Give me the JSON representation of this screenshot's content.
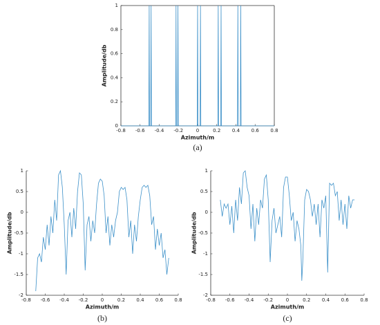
{
  "chart_data": [
    {
      "type": "line",
      "caption": "(a)",
      "xlabel": "Azimuth/m",
      "ylabel": "Amplitude/db",
      "color": "#3a8fc8",
      "box": true,
      "xlim": [
        -0.8,
        0.8
      ],
      "xticks": [
        -0.8,
        -0.6,
        -0.4,
        -0.2,
        0,
        0.2,
        0.4,
        0.6,
        0.8
      ],
      "ylim": [
        0,
        1
      ],
      "yticks": [
        0,
        0.2,
        0.4,
        0.6,
        0.8,
        1
      ],
      "x": [
        -0.8,
        -0.509,
        -0.505,
        -0.501,
        -0.489,
        -0.485,
        -0.481,
        -0.229,
        -0.225,
        -0.221,
        -0.209,
        -0.205,
        -0.201,
        -0.004,
        0,
        0.004,
        0.026,
        0.03,
        0.034,
        0.211,
        0.215,
        0.219,
        0.241,
        0.245,
        0.249,
        0.416,
        0.42,
        0.424,
        0.446,
        0.45,
        0.454,
        0.8
      ],
      "values": [
        0,
        0,
        1,
        0,
        0,
        1,
        0,
        0,
        1,
        0,
        0,
        1,
        0,
        0,
        1,
        0,
        0,
        1,
        0,
        0,
        1,
        0,
        0,
        1,
        0,
        0,
        1,
        0,
        0,
        1,
        0,
        0
      ]
    },
    {
      "type": "line",
      "caption": "(b)",
      "xlabel": "Azimuth/m",
      "ylabel": "Amplitude/db",
      "color": "#3a8fc8",
      "box": false,
      "xlim": [
        -0.8,
        0.8
      ],
      "xticks": [
        -0.8,
        -0.6,
        -0.4,
        -0.2,
        0,
        0.2,
        0.4,
        0.6,
        0.8
      ],
      "ylim": [
        -2,
        1
      ],
      "yticks": [
        -2,
        -1.5,
        -1,
        -0.5,
        0,
        0.5,
        1
      ],
      "x": [
        -0.7,
        -0.68,
        -0.66,
        -0.64,
        -0.62,
        -0.6,
        -0.58,
        -0.56,
        -0.54,
        -0.52,
        -0.5,
        -0.48,
        -0.46,
        -0.44,
        -0.42,
        -0.4,
        -0.38,
        -0.36,
        -0.34,
        -0.32,
        -0.3,
        -0.28,
        -0.26,
        -0.24,
        -0.22,
        -0.2,
        -0.18,
        -0.16,
        -0.14,
        -0.12,
        -0.1,
        -0.08,
        -0.06,
        -0.04,
        -0.02,
        0,
        0.02,
        0.04,
        0.06,
        0.08,
        0.1,
        0.12,
        0.14,
        0.16,
        0.18,
        0.2,
        0.22,
        0.24,
        0.26,
        0.28,
        0.3,
        0.32,
        0.34,
        0.36,
        0.38,
        0.4,
        0.42,
        0.44,
        0.46,
        0.48,
        0.5,
        0.52,
        0.54,
        0.56,
        0.58,
        0.6,
        0.62,
        0.64,
        0.66,
        0.68,
        0.7
      ],
      "values": [
        -1.9,
        -1.1,
        -1.0,
        -1.2,
        -0.6,
        -0.9,
        -0.3,
        -0.8,
        -0.1,
        -0.5,
        0.3,
        -0.2,
        0.9,
        1.0,
        0.6,
        -0.3,
        -1.5,
        -0.2,
        0.0,
        -0.6,
        0.1,
        -0.4,
        0.5,
        0.95,
        0.9,
        0.2,
        -1.4,
        -0.3,
        -0.1,
        -0.7,
        -0.2,
        -0.5,
        0.2,
        0.7,
        0.8,
        0.75,
        0.4,
        -0.5,
        -0.1,
        -0.8,
        -0.3,
        -0.6,
        -0.2,
        0.0,
        0.5,
        0.6,
        0.55,
        0.6,
        0.3,
        -0.6,
        -0.2,
        -1.0,
        -0.3,
        -0.7,
        -0.1,
        0.3,
        0.6,
        0.65,
        0.6,
        0.65,
        0.4,
        -0.3,
        -0.1,
        -0.9,
        -0.4,
        -0.8,
        -0.5,
        -1.1,
        -0.9,
        -1.5,
        -1.1
      ]
    },
    {
      "type": "line",
      "caption": "(c)",
      "xlabel": "Azimuth/m",
      "ylabel": "Amplitude/db",
      "color": "#3a8fc8",
      "box": false,
      "xlim": [
        -0.8,
        0.8
      ],
      "xticks": [
        -0.8,
        -0.6,
        -0.4,
        -0.2,
        0,
        0.2,
        0.4,
        0.6,
        0.8
      ],
      "ylim": [
        -2,
        1
      ],
      "yticks": [
        -2,
        -1.5,
        -1,
        -0.5,
        0,
        0.5,
        1
      ],
      "x": [
        -0.7,
        -0.68,
        -0.66,
        -0.64,
        -0.62,
        -0.6,
        -0.58,
        -0.56,
        -0.54,
        -0.52,
        -0.5,
        -0.48,
        -0.46,
        -0.44,
        -0.42,
        -0.4,
        -0.38,
        -0.36,
        -0.34,
        -0.32,
        -0.3,
        -0.28,
        -0.26,
        -0.24,
        -0.22,
        -0.2,
        -0.18,
        -0.16,
        -0.14,
        -0.12,
        -0.1,
        -0.08,
        -0.06,
        -0.04,
        -0.02,
        0,
        0.02,
        0.04,
        0.06,
        0.08,
        0.1,
        0.12,
        0.14,
        0.15,
        0.16,
        0.18,
        0.2,
        0.22,
        0.24,
        0.26,
        0.28,
        0.3,
        0.32,
        0.34,
        0.36,
        0.38,
        0.4,
        0.42,
        0.44,
        0.46,
        0.48,
        0.5,
        0.52,
        0.54,
        0.56,
        0.58,
        0.6,
        0.62,
        0.64,
        0.66,
        0.68,
        0.7
      ],
      "values": [
        0.3,
        -0.1,
        0.2,
        0.1,
        0.2,
        -0.3,
        0.15,
        -0.5,
        0.3,
        -0.2,
        0.6,
        0.2,
        0.95,
        1.0,
        0.6,
        0.4,
        -0.4,
        0.2,
        -0.7,
        0.1,
        -0.3,
        0.3,
        0.1,
        0.8,
        0.9,
        0.3,
        -1.2,
        -0.2,
        0.1,
        -0.5,
        -0.3,
        -0.1,
        -0.6,
        0.6,
        0.85,
        0.85,
        0.4,
        -0.2,
        0.0,
        -0.7,
        -0.2,
        -0.4,
        -0.8,
        -1.65,
        -1.2,
        0.3,
        0.55,
        0.5,
        0.3,
        -0.1,
        0.2,
        -0.3,
        0.2,
        -0.6,
        0.3,
        0.1,
        0.4,
        -1.45,
        0.7,
        0.65,
        0.7,
        0.4,
        0.5,
        -0.2,
        0.3,
        -0.3,
        0.2,
        -0.4,
        0.4,
        0.1,
        0.3,
        0.3
      ]
    }
  ]
}
